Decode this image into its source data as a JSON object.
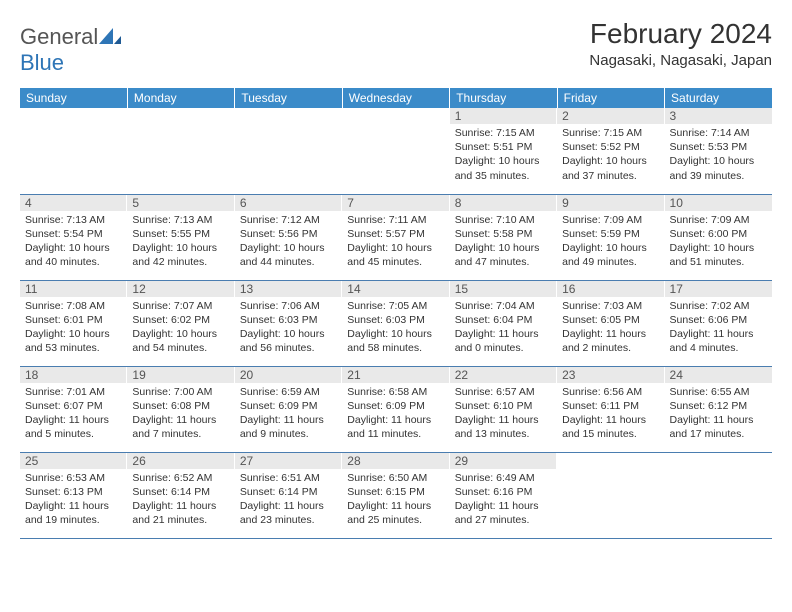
{
  "brand": {
    "first": "General",
    "second": "Blue"
  },
  "title": "February 2024",
  "location": "Nagasaki, Nagasaki, Japan",
  "colors": {
    "header_bg": "#3b8bc9",
    "header_text": "#ffffff",
    "daynum_bg": "#e9e9e9",
    "row_border": "#4a7db0",
    "brand_blue": "#2e75b6"
  },
  "dayHeaders": [
    "Sunday",
    "Monday",
    "Tuesday",
    "Wednesday",
    "Thursday",
    "Friday",
    "Saturday"
  ],
  "weeks": [
    [
      null,
      null,
      null,
      null,
      {
        "n": "1",
        "sr": "7:15 AM",
        "ss": "5:51 PM",
        "dl": "10 hours and 35 minutes."
      },
      {
        "n": "2",
        "sr": "7:15 AM",
        "ss": "5:52 PM",
        "dl": "10 hours and 37 minutes."
      },
      {
        "n": "3",
        "sr": "7:14 AM",
        "ss": "5:53 PM",
        "dl": "10 hours and 39 minutes."
      }
    ],
    [
      {
        "n": "4",
        "sr": "7:13 AM",
        "ss": "5:54 PM",
        "dl": "10 hours and 40 minutes."
      },
      {
        "n": "5",
        "sr": "7:13 AM",
        "ss": "5:55 PM",
        "dl": "10 hours and 42 minutes."
      },
      {
        "n": "6",
        "sr": "7:12 AM",
        "ss": "5:56 PM",
        "dl": "10 hours and 44 minutes."
      },
      {
        "n": "7",
        "sr": "7:11 AM",
        "ss": "5:57 PM",
        "dl": "10 hours and 45 minutes."
      },
      {
        "n": "8",
        "sr": "7:10 AM",
        "ss": "5:58 PM",
        "dl": "10 hours and 47 minutes."
      },
      {
        "n": "9",
        "sr": "7:09 AM",
        "ss": "5:59 PM",
        "dl": "10 hours and 49 minutes."
      },
      {
        "n": "10",
        "sr": "7:09 AM",
        "ss": "6:00 PM",
        "dl": "10 hours and 51 minutes."
      }
    ],
    [
      {
        "n": "11",
        "sr": "7:08 AM",
        "ss": "6:01 PM",
        "dl": "10 hours and 53 minutes."
      },
      {
        "n": "12",
        "sr": "7:07 AM",
        "ss": "6:02 PM",
        "dl": "10 hours and 54 minutes."
      },
      {
        "n": "13",
        "sr": "7:06 AM",
        "ss": "6:03 PM",
        "dl": "10 hours and 56 minutes."
      },
      {
        "n": "14",
        "sr": "7:05 AM",
        "ss": "6:03 PM",
        "dl": "10 hours and 58 minutes."
      },
      {
        "n": "15",
        "sr": "7:04 AM",
        "ss": "6:04 PM",
        "dl": "11 hours and 0 minutes."
      },
      {
        "n": "16",
        "sr": "7:03 AM",
        "ss": "6:05 PM",
        "dl": "11 hours and 2 minutes."
      },
      {
        "n": "17",
        "sr": "7:02 AM",
        "ss": "6:06 PM",
        "dl": "11 hours and 4 minutes."
      }
    ],
    [
      {
        "n": "18",
        "sr": "7:01 AM",
        "ss": "6:07 PM",
        "dl": "11 hours and 5 minutes."
      },
      {
        "n": "19",
        "sr": "7:00 AM",
        "ss": "6:08 PM",
        "dl": "11 hours and 7 minutes."
      },
      {
        "n": "20",
        "sr": "6:59 AM",
        "ss": "6:09 PM",
        "dl": "11 hours and 9 minutes."
      },
      {
        "n": "21",
        "sr": "6:58 AM",
        "ss": "6:09 PM",
        "dl": "11 hours and 11 minutes."
      },
      {
        "n": "22",
        "sr": "6:57 AM",
        "ss": "6:10 PM",
        "dl": "11 hours and 13 minutes."
      },
      {
        "n": "23",
        "sr": "6:56 AM",
        "ss": "6:11 PM",
        "dl": "11 hours and 15 minutes."
      },
      {
        "n": "24",
        "sr": "6:55 AM",
        "ss": "6:12 PM",
        "dl": "11 hours and 17 minutes."
      }
    ],
    [
      {
        "n": "25",
        "sr": "6:53 AM",
        "ss": "6:13 PM",
        "dl": "11 hours and 19 minutes."
      },
      {
        "n": "26",
        "sr": "6:52 AM",
        "ss": "6:14 PM",
        "dl": "11 hours and 21 minutes."
      },
      {
        "n": "27",
        "sr": "6:51 AM",
        "ss": "6:14 PM",
        "dl": "11 hours and 23 minutes."
      },
      {
        "n": "28",
        "sr": "6:50 AM",
        "ss": "6:15 PM",
        "dl": "11 hours and 25 minutes."
      },
      {
        "n": "29",
        "sr": "6:49 AM",
        "ss": "6:16 PM",
        "dl": "11 hours and 27 minutes."
      },
      null,
      null
    ]
  ],
  "labels": {
    "sunrise": "Sunrise:",
    "sunset": "Sunset:",
    "daylight": "Daylight:"
  }
}
